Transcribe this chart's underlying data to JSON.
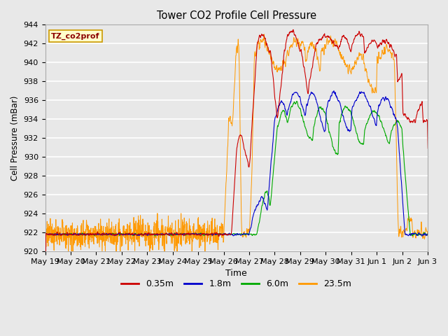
{
  "title": "Tower CO2 Profile Cell Pressure",
  "xlabel": "Time",
  "ylabel": "Cell Pressure (mBar)",
  "ylim": [
    920,
    944
  ],
  "yticks": [
    920,
    922,
    924,
    926,
    928,
    930,
    932,
    934,
    936,
    938,
    940,
    942,
    944
  ],
  "background_color": "#e8e8e8",
  "legend_label": "TZ_co2prof",
  "series": [
    {
      "label": "0.35m",
      "color": "#cc0000"
    },
    {
      "label": "1.8m",
      "color": "#0000cc"
    },
    {
      "label": "6.0m",
      "color": "#00aa00"
    },
    {
      "label": "23.5m",
      "color": "#ff9900"
    }
  ],
  "base_pressure": 921.8,
  "xtick_labels": [
    "May 19",
    "May 20",
    "May 21",
    "May 22",
    "May 23",
    "May 24",
    "May 25",
    "May 26",
    "May 27",
    "May 28",
    "May 29",
    "May 30",
    "May 31",
    "Jun 1",
    "Jun 2",
    "Jun 3"
  ],
  "figsize": [
    6.4,
    4.8
  ],
  "dpi": 100
}
